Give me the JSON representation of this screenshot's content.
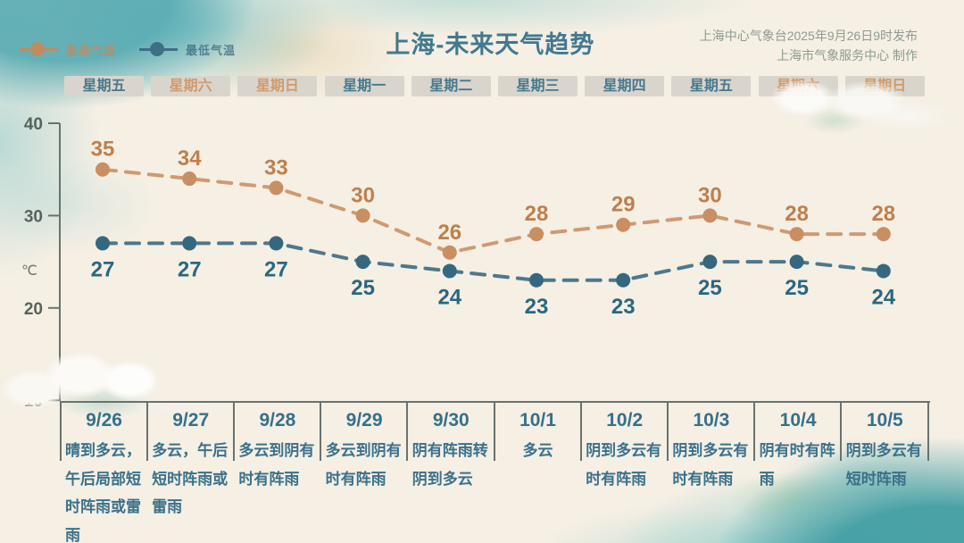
{
  "header": {
    "title": "上海-未来天气趋势",
    "credit_line1": "上海中心气象台2025年9月26日9时发布",
    "credit_line2": "上海市气象服务中心 制作"
  },
  "legend": {
    "items": [
      {
        "label": "最高气温",
        "color": "#c8885a"
      },
      {
        "label": "最低气温",
        "color": "#38677e"
      }
    ]
  },
  "weekday_row": [
    {
      "label": "星期五",
      "weekend": false
    },
    {
      "label": "星期六",
      "weekend": true
    },
    {
      "label": "星期日",
      "weekend": true
    },
    {
      "label": "星期一",
      "weekend": false
    },
    {
      "label": "星期二",
      "weekend": false
    },
    {
      "label": "星期三",
      "weekend": false
    },
    {
      "label": "星期四",
      "weekend": false
    },
    {
      "label": "星期五",
      "weekend": false
    },
    {
      "label": "星期六",
      "weekend": true
    },
    {
      "label": "星期日",
      "weekend": true
    }
  ],
  "chart_data": {
    "type": "line",
    "title": "上海-未来天气趋势",
    "x": [
      "9/26",
      "9/27",
      "9/28",
      "9/29",
      "9/30",
      "10/1",
      "10/2",
      "10/3",
      "10/4",
      "10/5"
    ],
    "series": [
      {
        "name": "最高气温",
        "values": [
          35,
          34,
          33,
          30,
          26,
          28,
          29,
          30,
          28,
          28
        ],
        "color": "#c98e62",
        "label_color": "#bf7f4c"
      },
      {
        "name": "最低气温",
        "values": [
          27,
          27,
          27,
          25,
          24,
          23,
          23,
          25,
          25,
          24
        ],
        "color": "#35687f",
        "label_color": "#2a6781"
      }
    ],
    "ylabel": "℃",
    "yticks": [
      40,
      30,
      20,
      10
    ],
    "ylim": [
      10,
      40
    ],
    "line_style": "dashed",
    "grid": false,
    "legend_position": "top-left"
  },
  "forecast_table": {
    "days": [
      {
        "date": "9/26",
        "weather": "晴到多云，午后局部短时阵雨或雷雨"
      },
      {
        "date": "9/27",
        "weather": "多云，午后短时阵雨或雷雨"
      },
      {
        "date": "9/28",
        "weather": "多云到阴有时有阵雨"
      },
      {
        "date": "9/29",
        "weather": "多云到阴有时有阵雨"
      },
      {
        "date": "9/30",
        "weather": "阴有阵雨转阴到多云"
      },
      {
        "date": "10/1",
        "weather": "多云"
      },
      {
        "date": "10/2",
        "weather": "阴到多云有时有阵雨"
      },
      {
        "date": "10/3",
        "weather": "阴到多云有时有阵雨"
      },
      {
        "date": "10/4",
        "weather": "阴有时有阵雨"
      },
      {
        "date": "10/5",
        "weather": "阴到多云有短时阵雨"
      }
    ]
  }
}
